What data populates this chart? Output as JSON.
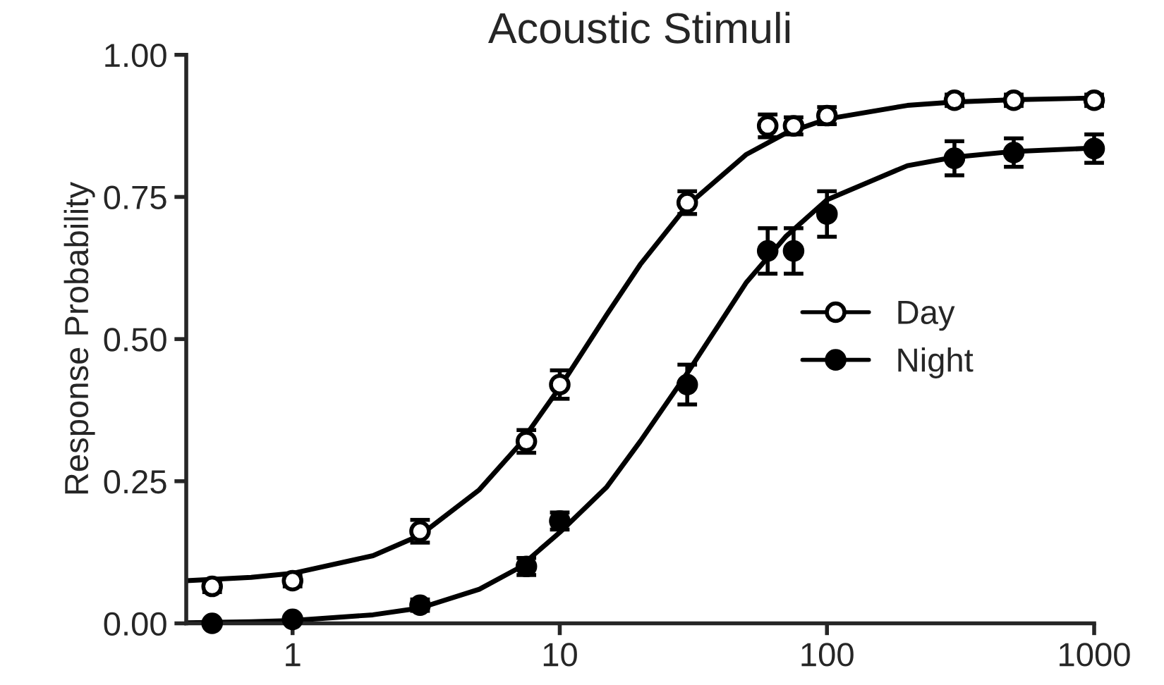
{
  "chart_data": {
    "type": "scatter",
    "title": "Acoustic Stimuli",
    "ylabel": "Response Probability",
    "xlim": [
      0.4,
      1000
    ],
    "ylim": [
      0,
      1
    ],
    "log": "x",
    "xticks": [
      1,
      10,
      100,
      1000
    ],
    "yticks": [
      {
        "value": 0,
        "label": "0.00"
      },
      {
        "value": 0.25,
        "label": "0.25"
      },
      {
        "value": 0.5,
        "label": "0.50"
      },
      {
        "value": 0.75,
        "label": "0.75"
      },
      {
        "value": 1,
        "label": "1.00"
      }
    ],
    "grid": false,
    "legend": "right",
    "series": [
      {
        "name": "Day",
        "marker": "circle",
        "color": "#ffffff",
        "x": [
          0.5,
          1,
          3,
          7.5,
          10,
          30,
          60,
          75,
          100,
          300,
          500,
          1000
        ],
        "values": [
          0.065,
          0.075,
          0.162,
          0.32,
          0.42,
          0.74,
          0.875,
          0.875,
          0.893,
          0.92,
          0.92,
          0.92
        ],
        "errors": [
          0.01,
          0.01,
          0.02,
          0.02,
          0.025,
          0.02,
          0.02,
          0.015,
          0.015,
          0.01,
          0.01,
          0.01
        ]
      },
      {
        "name": "Night",
        "marker": "circle",
        "color": "#000000",
        "x": [
          0.5,
          1,
          3,
          7.5,
          10,
          30,
          60,
          75,
          100,
          300,
          500,
          1000
        ],
        "values": [
          0,
          0.007,
          0.032,
          0.1,
          0.18,
          0.42,
          0.655,
          0.655,
          0.72,
          0.818,
          0.828,
          0.835
        ],
        "errors": [
          null,
          null,
          0.01,
          0.015,
          0.015,
          0.035,
          0.04,
          0.04,
          0.04,
          0.03,
          0.025,
          0.025
        ]
      },
      {
        "type": "line",
        "color": "#000000",
        "x": [
          0.4,
          0.7,
          1,
          2,
          3,
          5,
          7,
          10,
          15,
          20,
          30,
          50,
          70,
          100,
          200,
          300,
          500,
          1000
        ],
        "values": [
          0.075,
          0.081,
          0.088,
          0.119,
          0.155,
          0.235,
          0.312,
          0.415,
          0.543,
          0.631,
          0.735,
          0.825,
          0.862,
          0.887,
          0.911,
          0.917,
          0.921,
          0.924
        ]
      },
      {
        "type": "line",
        "color": "#000000",
        "x": [
          0.4,
          0.7,
          1,
          2,
          3,
          5,
          7,
          10,
          15,
          20,
          30,
          50,
          70,
          100,
          200,
          300,
          500,
          1000
        ],
        "values": [
          0.001,
          0.003,
          0.005,
          0.015,
          0.027,
          0.06,
          0.097,
          0.16,
          0.24,
          0.32,
          0.44,
          0.6,
          0.68,
          0.745,
          0.805,
          0.82,
          0.83,
          0.836
        ]
      }
    ]
  }
}
